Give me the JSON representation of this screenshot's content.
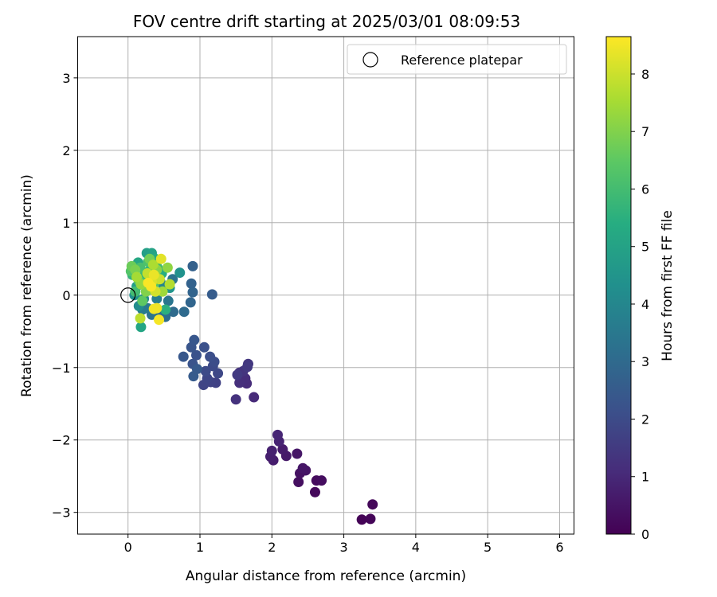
{
  "chart_data": {
    "type": "scatter",
    "title": "FOV centre drift starting at 2025/03/01 08:09:53",
    "xlabel": "Angular distance from reference (arcmin)",
    "ylabel": "Rotation from reference (arcmin)",
    "xlim": [
      -0.7,
      6.2
    ],
    "ylim": [
      -3.3,
      3.57
    ],
    "xticks": [
      0,
      1,
      2,
      3,
      4,
      5,
      6
    ],
    "yticks": [
      -3,
      -2,
      -1,
      0,
      1,
      2,
      3
    ],
    "grid": true,
    "legend": {
      "position": "top-right",
      "entries": [
        "Reference platepar"
      ]
    },
    "reference_point": {
      "x": 0,
      "y": 0
    },
    "colorbar": {
      "label": "Hours from first FF file",
      "colormap": "viridis",
      "range": [
        0,
        8.65
      ],
      "ticks": [
        0,
        1,
        2,
        3,
        4,
        5,
        6,
        7,
        8
      ]
    },
    "points": [
      {
        "x": 3.25,
        "y": -3.1,
        "h": 0.05
      },
      {
        "x": 3.37,
        "y": -3.09,
        "h": 0.1
      },
      {
        "x": 3.4,
        "y": -2.89,
        "h": 0.15
      },
      {
        "x": 2.6,
        "y": -2.72,
        "h": 0.2
      },
      {
        "x": 2.62,
        "y": -2.56,
        "h": 0.25
      },
      {
        "x": 2.69,
        "y": -2.56,
        "h": 0.3
      },
      {
        "x": 2.37,
        "y": -2.58,
        "h": 0.35
      },
      {
        "x": 2.39,
        "y": -2.46,
        "h": 0.4
      },
      {
        "x": 2.47,
        "y": -2.42,
        "h": 0.45
      },
      {
        "x": 2.43,
        "y": -2.39,
        "h": 0.5
      },
      {
        "x": 2.35,
        "y": -2.19,
        "h": 0.55
      },
      {
        "x": 2.2,
        "y": -2.22,
        "h": 0.6
      },
      {
        "x": 2.15,
        "y": -2.13,
        "h": 0.65
      },
      {
        "x": 2.02,
        "y": -2.28,
        "h": 0.7
      },
      {
        "x": 1.98,
        "y": -2.23,
        "h": 0.75
      },
      {
        "x": 2.0,
        "y": -2.15,
        "h": 0.8
      },
      {
        "x": 2.1,
        "y": -2.02,
        "h": 0.85
      },
      {
        "x": 2.08,
        "y": -1.93,
        "h": 0.9
      },
      {
        "x": 1.75,
        "y": -1.41,
        "h": 1.05
      },
      {
        "x": 1.65,
        "y": -1.22,
        "h": 1.1
      },
      {
        "x": 1.63,
        "y": -1.15,
        "h": 1.15
      },
      {
        "x": 1.55,
        "y": -1.21,
        "h": 1.2
      },
      {
        "x": 1.5,
        "y": -1.44,
        "h": 1.25
      },
      {
        "x": 1.55,
        "y": -1.07,
        "h": 1.3
      },
      {
        "x": 1.6,
        "y": -1.05,
        "h": 1.35
      },
      {
        "x": 1.67,
        "y": -0.95,
        "h": 1.4
      },
      {
        "x": 1.66,
        "y": -0.99,
        "h": 1.45
      },
      {
        "x": 1.52,
        "y": -1.1,
        "h": 1.5
      },
      {
        "x": 1.22,
        "y": -1.21,
        "h": 1.7
      },
      {
        "x": 1.15,
        "y": -1.2,
        "h": 1.75
      },
      {
        "x": 1.05,
        "y": -1.24,
        "h": 1.8
      },
      {
        "x": 1.1,
        "y": -1.15,
        "h": 1.85
      },
      {
        "x": 1.25,
        "y": -1.08,
        "h": 1.9
      },
      {
        "x": 1.18,
        "y": -0.98,
        "h": 1.95
      },
      {
        "x": 1.08,
        "y": -1.05,
        "h": 2.0
      },
      {
        "x": 1.2,
        "y": -0.92,
        "h": 2.05
      },
      {
        "x": 1.14,
        "y": -0.85,
        "h": 2.1
      },
      {
        "x": 1.06,
        "y": -0.72,
        "h": 2.15
      },
      {
        "x": 0.95,
        "y": -0.83,
        "h": 2.2
      },
      {
        "x": 0.9,
        "y": -0.95,
        "h": 2.25
      },
      {
        "x": 0.88,
        "y": -0.72,
        "h": 2.3
      },
      {
        "x": 0.92,
        "y": -0.62,
        "h": 2.35
      },
      {
        "x": 0.77,
        "y": -0.85,
        "h": 2.4
      },
      {
        "x": 0.96,
        "y": -1.02,
        "h": 2.45
      },
      {
        "x": 0.91,
        "y": -1.12,
        "h": 2.5
      },
      {
        "x": 1.17,
        "y": 0.01,
        "h": 2.55
      },
      {
        "x": 0.9,
        "y": 0.4,
        "h": 2.7
      },
      {
        "x": 0.88,
        "y": 0.16,
        "h": 2.75
      },
      {
        "x": 0.9,
        "y": 0.04,
        "h": 2.8
      },
      {
        "x": 0.87,
        "y": -0.1,
        "h": 2.85
      },
      {
        "x": 0.78,
        "y": -0.23,
        "h": 3.0
      },
      {
        "x": 0.63,
        "y": -0.23,
        "h": 3.05
      },
      {
        "x": 0.52,
        "y": -0.3,
        "h": 3.1
      },
      {
        "x": 0.46,
        "y": -0.25,
        "h": 3.15
      },
      {
        "x": 0.33,
        "y": -0.27,
        "h": 3.3
      },
      {
        "x": 0.62,
        "y": 0.22,
        "h": 3.35
      },
      {
        "x": 0.56,
        "y": -0.08,
        "h": 3.4
      },
      {
        "x": 0.27,
        "y": -0.18,
        "h": 3.5
      },
      {
        "x": 0.2,
        "y": -0.2,
        "h": 3.6
      },
      {
        "x": 0.4,
        "y": -0.05,
        "h": 3.7
      },
      {
        "x": 0.5,
        "y": 0.12,
        "h": 3.8
      },
      {
        "x": 0.45,
        "y": 0.18,
        "h": 3.9
      },
      {
        "x": 0.3,
        "y": 0.08,
        "h": 4.0
      },
      {
        "x": 0.22,
        "y": -0.05,
        "h": 4.1
      },
      {
        "x": 0.15,
        "y": -0.15,
        "h": 4.2
      },
      {
        "x": 0.09,
        "y": 0.0,
        "h": 4.3
      },
      {
        "x": 0.72,
        "y": 0.31,
        "h": 4.4
      },
      {
        "x": 0.58,
        "y": 0.1,
        "h": 4.5
      },
      {
        "x": 0.35,
        "y": 0.22,
        "h": 4.6
      },
      {
        "x": 0.25,
        "y": 0.2,
        "h": 4.7
      },
      {
        "x": 0.12,
        "y": 0.12,
        "h": 4.8
      },
      {
        "x": 0.26,
        "y": 0.58,
        "h": 4.9
      },
      {
        "x": 0.33,
        "y": 0.58,
        "h": 5.0
      },
      {
        "x": 0.18,
        "y": -0.44,
        "h": 5.1
      },
      {
        "x": 0.14,
        "y": 0.45,
        "h": 5.2
      },
      {
        "x": 0.38,
        "y": 0.5,
        "h": 5.3
      },
      {
        "x": 0.47,
        "y": 0.3,
        "h": 5.4
      },
      {
        "x": 0.52,
        "y": -0.2,
        "h": 5.5
      },
      {
        "x": 0.3,
        "y": 0.34,
        "h": 5.6
      },
      {
        "x": 0.06,
        "y": 0.28,
        "h": 5.7
      },
      {
        "x": 0.21,
        "y": 0.25,
        "h": 5.8
      },
      {
        "x": 0.41,
        "y": 0.38,
        "h": 5.9
      },
      {
        "x": 0.1,
        "y": 0.05,
        "h": 6.0
      },
      {
        "x": 0.17,
        "y": 0.38,
        "h": 6.1
      },
      {
        "x": 0.28,
        "y": 0.46,
        "h": 6.2
      },
      {
        "x": 0.04,
        "y": 0.33,
        "h": 6.3
      },
      {
        "x": 0.36,
        "y": 0.15,
        "h": 6.4
      },
      {
        "x": 0.2,
        "y": -0.08,
        "h": 6.5
      },
      {
        "x": 0.15,
        "y": 0.2,
        "h": 6.6
      },
      {
        "x": 0.05,
        "y": 0.4,
        "h": 6.7
      },
      {
        "x": 0.3,
        "y": 0.5,
        "h": 6.8
      },
      {
        "x": 0.1,
        "y": 0.35,
        "h": 6.9
      },
      {
        "x": 0.25,
        "y": 0.05,
        "h": 7.0
      },
      {
        "x": 0.4,
        "y": 0.35,
        "h": 7.1
      },
      {
        "x": 0.55,
        "y": 0.38,
        "h": 7.2
      },
      {
        "x": 0.18,
        "y": 0.15,
        "h": 7.3
      },
      {
        "x": 0.48,
        "y": 0.05,
        "h": 7.4
      },
      {
        "x": 0.12,
        "y": 0.25,
        "h": 7.5
      },
      {
        "x": 0.35,
        "y": 0.42,
        "h": 7.6
      },
      {
        "x": 0.58,
        "y": 0.15,
        "h": 7.7
      },
      {
        "x": 0.17,
        "y": -0.32,
        "h": 7.8
      },
      {
        "x": 0.27,
        "y": 0.3,
        "h": 7.9
      },
      {
        "x": 0.44,
        "y": 0.22,
        "h": 8.0
      },
      {
        "x": 0.38,
        "y": 0.05,
        "h": 8.1
      },
      {
        "x": 0.33,
        "y": 0.18,
        "h": 8.2
      },
      {
        "x": 0.46,
        "y": 0.5,
        "h": 8.3
      },
      {
        "x": 0.36,
        "y": 0.28,
        "h": 8.4
      },
      {
        "x": 0.4,
        "y": -0.18,
        "h": 8.45
      },
      {
        "x": 0.36,
        "y": -0.19,
        "h": 8.5
      },
      {
        "x": 0.43,
        "y": -0.34,
        "h": 8.55
      },
      {
        "x": 0.32,
        "y": 0.12,
        "h": 8.6
      },
      {
        "x": 0.28,
        "y": 0.17,
        "h": 8.6
      }
    ]
  }
}
